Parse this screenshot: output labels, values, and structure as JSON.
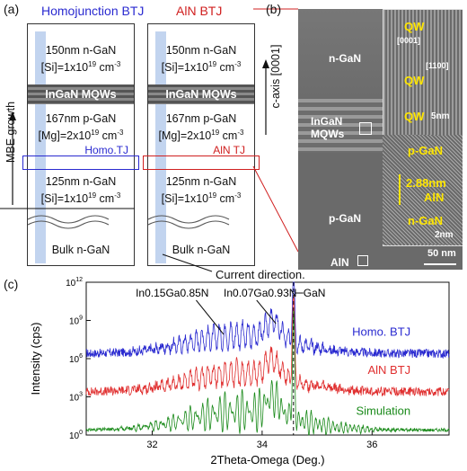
{
  "panel_a": {
    "label": "(a)",
    "homo_title": "Homojunction BTJ",
    "aln_title": "AlN BTJ",
    "layer1_a": "150nm n-GaN",
    "layer1_b": "[Si]=1x10",
    "layer1_exp": "19",
    "layer1_unit": " cm",
    "layer1_unit_exp": "-3",
    "mqw": "InGaN MQWs",
    "layer2_a": "167nm p-GaN",
    "layer2_b": "[Mg]=2x10",
    "layer2_exp": "19",
    "homo_tj": "Homo.TJ",
    "aln_tj": "AlN TJ",
    "layer3_a": "125nm n-GaN",
    "bulk": "Bulk n-GaN",
    "mbe_growth": "MBE growth",
    "c_axis": "c-axis [0001]",
    "current_direction": "Current direction."
  },
  "panel_b": {
    "label": "(b)",
    "n_gan": "n-GaN",
    "ingan": "InGaN",
    "mqws": "MQWs",
    "p_gan": "p-GaN",
    "aln": "AlN",
    "qw": "QW",
    "dir_0001": "[0001]",
    "dir_1100": "[1100]",
    "scale_5nm": "5nm",
    "inset_p_gan": "p-GaN",
    "aln_thickness": "2.88nm",
    "aln_inset": "AlN",
    "inset_n_gan": "n-GaN",
    "scale_2nm": "2nm",
    "scale_50nm": "50 nm"
  },
  "panel_c": {
    "label": "(c)",
    "ann_in015": "In0.15Ga0.85N",
    "ann_in007": "In0.07Ga0.93N",
    "ann_gan": "GaN"
  },
  "chart_data": {
    "type": "line",
    "xlabel": "2Theta-Omega (Deg.)",
    "ylabel": "Intensity (cps)",
    "xlim": [
      30.8,
      37.4
    ],
    "ylim_log10": [
      0,
      12
    ],
    "xticks": [
      32,
      34,
      36
    ],
    "yticks": [
      "10^0",
      "10^3",
      "10^6",
      "10^9",
      "10^12"
    ],
    "grid": false,
    "series": [
      {
        "name": "Homo. BTJ",
        "color": "#2a2ad0",
        "baseline_log10": 6,
        "peak_x": 34.57
      },
      {
        "name": "AlN BTJ",
        "color": "#e03030",
        "baseline_log10": 3,
        "peak_x": 34.57
      },
      {
        "name": "Simulation",
        "color": "#1a8a1a",
        "baseline_log10": 0,
        "peak_x": 34.57
      }
    ]
  },
  "colors": {
    "homo_blue": "#2a2ad0",
    "aln_red": "#d02020",
    "tem_yellow": "#ffe600"
  }
}
